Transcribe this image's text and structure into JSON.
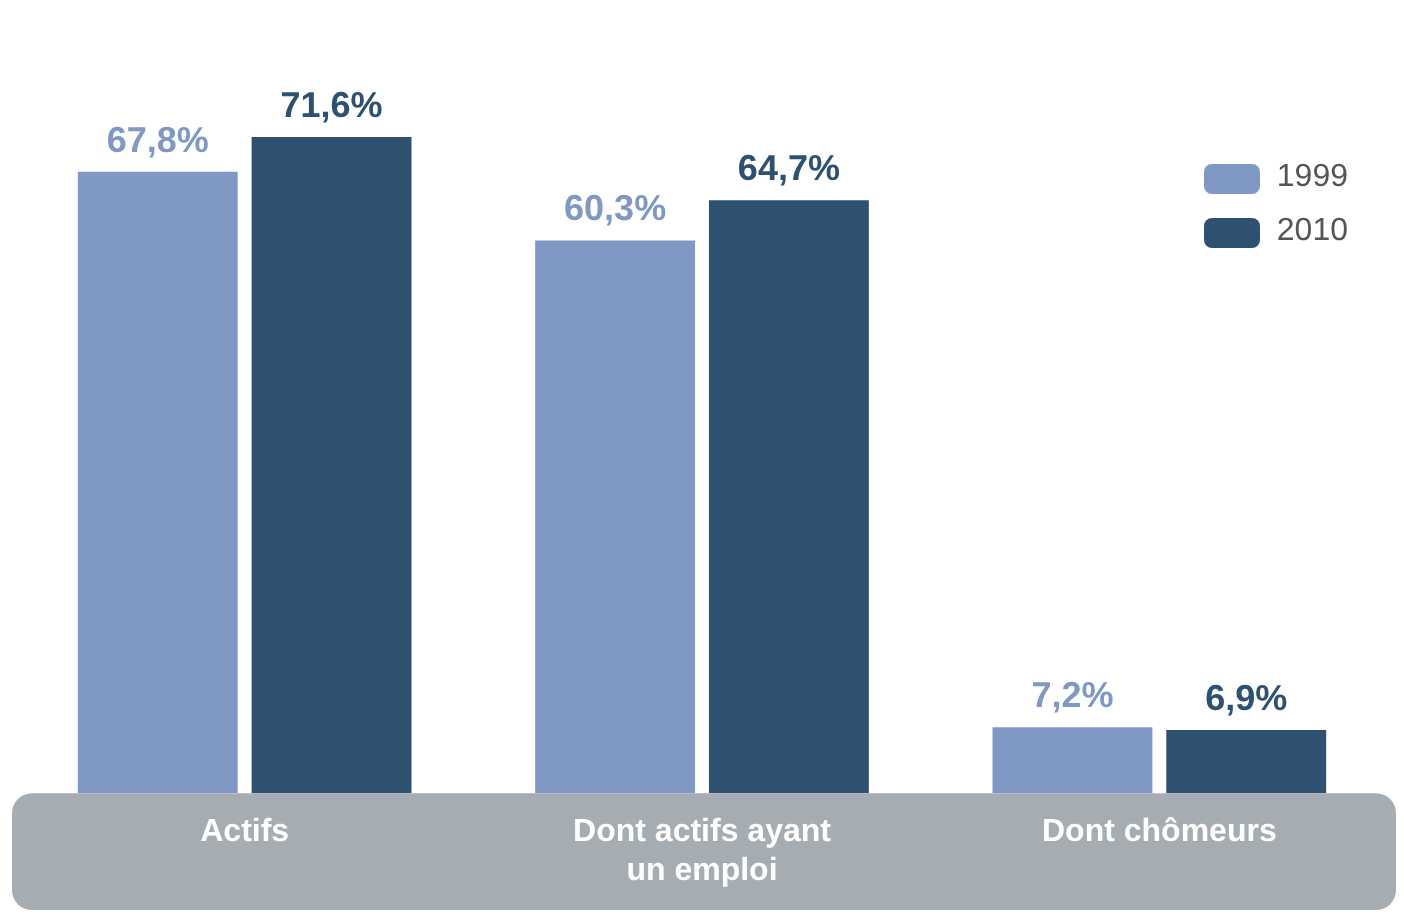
{
  "chart_data": {
    "type": "bar",
    "categories": [
      "Actifs",
      "Dont actifs ayant un emploi",
      "Dont chômeurs"
    ],
    "series": [
      {
        "name": "1999",
        "color": "#7f98c4",
        "values": [
          67.8,
          60.3,
          7.2
        ],
        "value_labels": [
          "67,8%",
          "60,3%",
          "7,2%"
        ]
      },
      {
        "name": "2010",
        "color": "#2e5071",
        "values": [
          71.6,
          64.7,
          6.9
        ],
        "value_labels": [
          "71,6%",
          "64,7%",
          "6,9%"
        ]
      }
    ],
    "legend": "top right",
    "tick_labels": "x"
  }
}
